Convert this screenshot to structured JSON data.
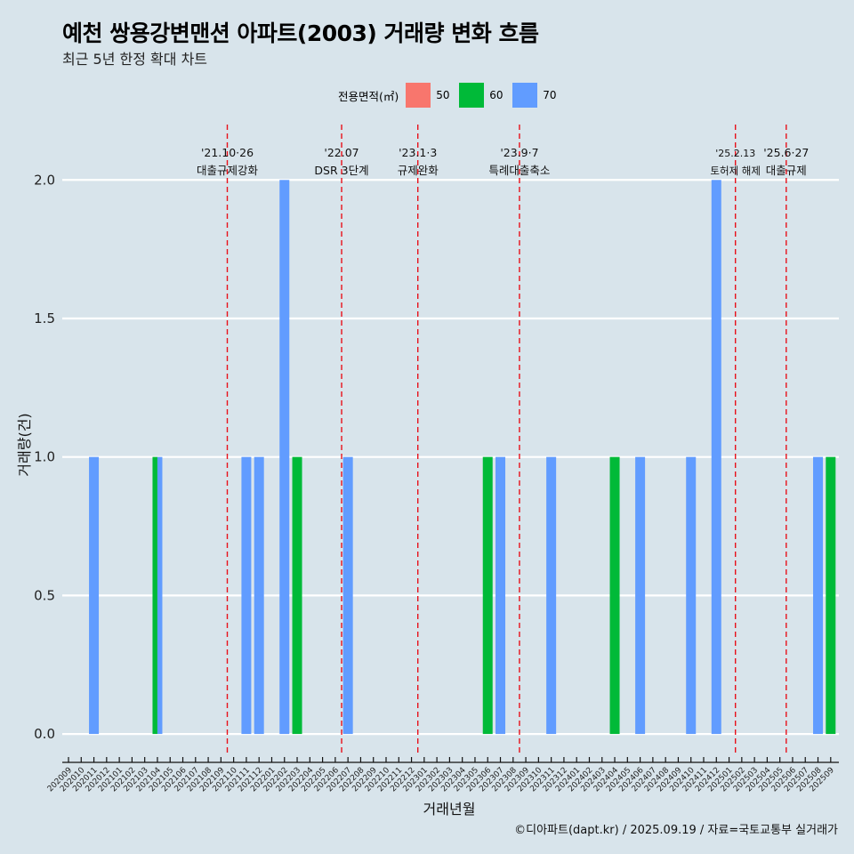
{
  "page": {
    "title": "예천 쌍용강변맨션 아파트(2003) 거래량 변화 흐름",
    "subtitle": "최근 5년 한정 확대 차트",
    "caption": "©디아파트(dapt.kr) / 2025.09.19 / 자료=국토교통부 실거래가",
    "colors": {
      "background": "#d8e4eb",
      "gridline": "#ffffff",
      "event_line": "#e8101a",
      "area_50": "#f8766d",
      "area_60": "#00ba38",
      "area_70": "#619cff"
    }
  },
  "legend": {
    "title": "전용면적(㎡)",
    "items": [
      {
        "label": "50",
        "color": "#f8766d"
      },
      {
        "label": "60",
        "color": "#00ba38"
      },
      {
        "label": "70",
        "color": "#619cff"
      }
    ]
  },
  "chart_data": {
    "type": "bar",
    "xlabel": "거래년월",
    "ylabel": "거래량(건)",
    "ylim": [
      -0.08,
      2.2
    ],
    "yticks": [
      0.0,
      0.5,
      1.0,
      1.5,
      2.0
    ],
    "ytick_labels": [
      "0.0",
      "0.5",
      "1.0",
      "1.5",
      "2.0"
    ],
    "grid": true,
    "legend_position": "top",
    "categories": [
      "202009",
      "202010",
      "202011",
      "202012",
      "202101",
      "202102",
      "202103",
      "202104",
      "202105",
      "202106",
      "202107",
      "202108",
      "202109",
      "202110",
      "202111",
      "202112",
      "202201",
      "202202",
      "202203",
      "202204",
      "202205",
      "202206",
      "202207",
      "202208",
      "202209",
      "202210",
      "202211",
      "202212",
      "202301",
      "202302",
      "202303",
      "202304",
      "202305",
      "202306",
      "202307",
      "202308",
      "202309",
      "202310",
      "202311",
      "202312",
      "202401",
      "202402",
      "202403",
      "202404",
      "202405",
      "202406",
      "202407",
      "202408",
      "202409",
      "202410",
      "202411",
      "202412",
      "202501",
      "202502",
      "202503",
      "202504",
      "202505",
      "202506",
      "202507",
      "202508",
      "202509"
    ],
    "series": [
      {
        "name": "60",
        "color": "#00ba38",
        "points": [
          {
            "x": "202104",
            "y": 1
          },
          {
            "x": "202203",
            "y": 1
          },
          {
            "x": "202306",
            "y": 1
          },
          {
            "x": "202404",
            "y": 1
          },
          {
            "x": "202509",
            "y": 1
          }
        ]
      },
      {
        "name": "70",
        "color": "#619cff",
        "points": [
          {
            "x": "202011",
            "y": 1
          },
          {
            "x": "202104",
            "y": 1
          },
          {
            "x": "202111",
            "y": 1
          },
          {
            "x": "202112",
            "y": 1
          },
          {
            "x": "202202",
            "y": 2
          },
          {
            "x": "202207",
            "y": 1
          },
          {
            "x": "202307",
            "y": 1
          },
          {
            "x": "202311",
            "y": 1
          },
          {
            "x": "202406",
            "y": 1
          },
          {
            "x": "202410",
            "y": 1
          },
          {
            "x": "202412",
            "y": 2
          },
          {
            "x": "202508",
            "y": 1
          }
        ]
      }
    ],
    "events": [
      {
        "x": "202110",
        "date": "'21.10·26",
        "label": "대출규제강화"
      },
      {
        "x": "202207",
        "date": "'22.07",
        "label": "DSR 3단계"
      },
      {
        "x": "202301",
        "date": "'23.1·3",
        "label": "규제완화"
      },
      {
        "x": "202309",
        "date": "'23.9·7",
        "label": "특례대출축소"
      },
      {
        "x": "202502",
        "date": "'25.2.13",
        "label": "토허제 해제"
      },
      {
        "x": "202506",
        "date": "'25.6·27",
        "label": "대출규제"
      }
    ]
  }
}
